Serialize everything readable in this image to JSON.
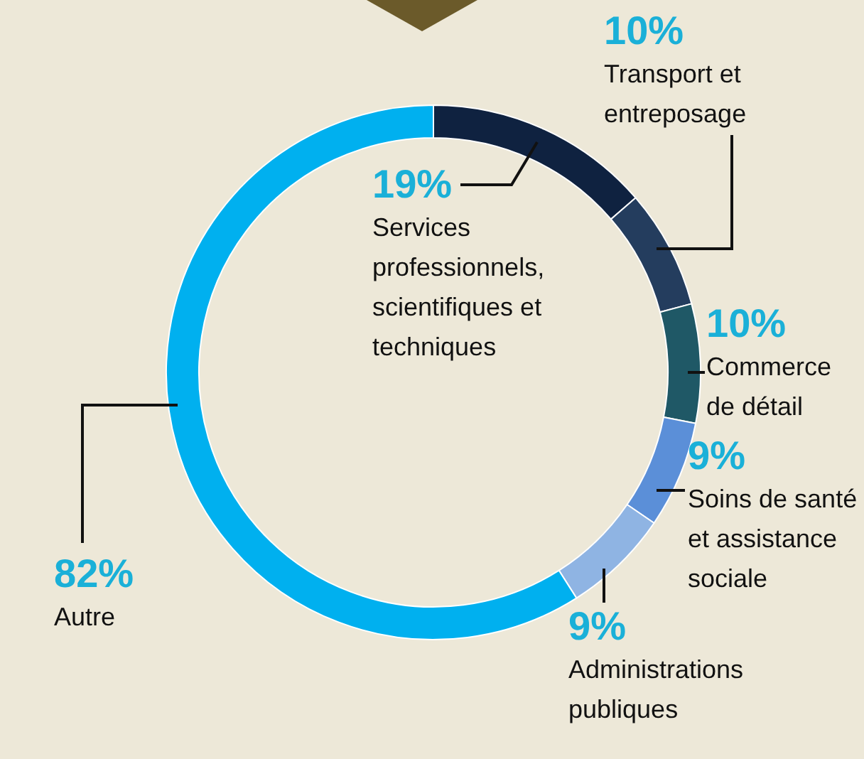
{
  "chart_data": {
    "type": "donut",
    "categories": [
      "Services professionnels, scientifiques et techniques",
      "Transport et entreposage",
      "Commerce de détail",
      "Soins de santé et assistance sociale",
      "Administrations publiques",
      "Autre"
    ],
    "values": [
      19,
      10,
      10,
      9,
      9,
      82
    ],
    "value_labels": [
      "19%",
      "10%",
      "10%",
      "9%",
      "9%",
      "82%"
    ],
    "colors": [
      "#0f2240",
      "#243d5e",
      "#1f5866",
      "#5b8fd8",
      "#8fb4e3",
      "#00b0ef"
    ]
  }
}
